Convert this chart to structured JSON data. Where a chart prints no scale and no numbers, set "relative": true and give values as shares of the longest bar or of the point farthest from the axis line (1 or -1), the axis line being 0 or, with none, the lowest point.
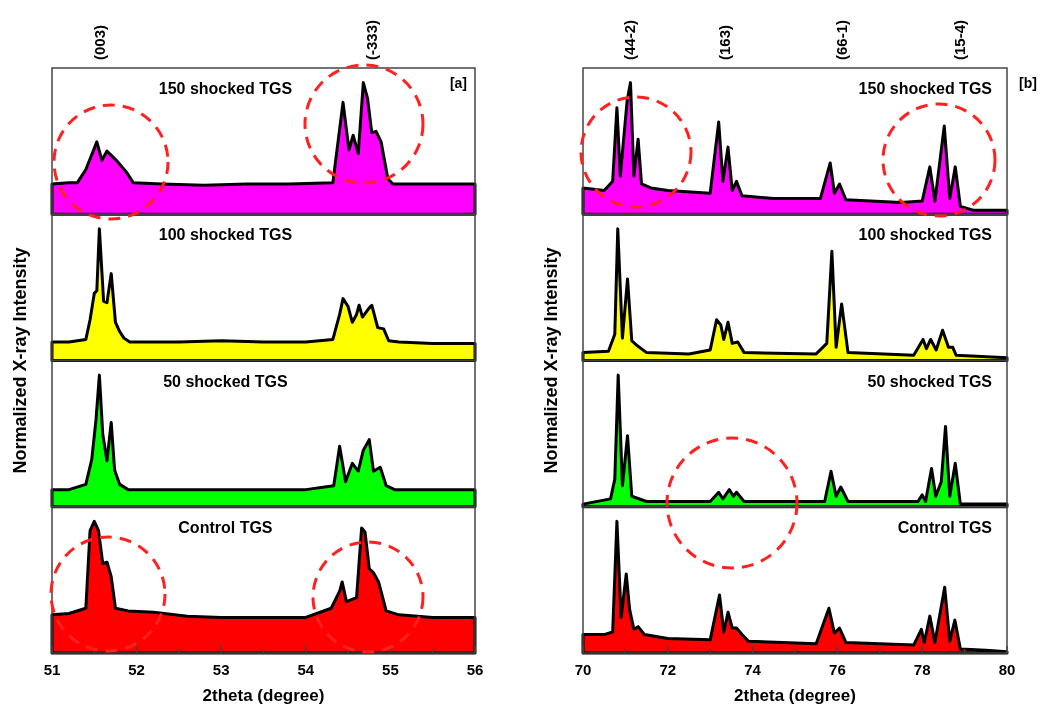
{
  "chart_data": [
    {
      "type": "area",
      "title": "150 shocked TGS",
      "ylabel": "Normalized X-ray Intensity",
      "annotations": [
        "[a]",
        "(003)",
        "(-333)"
      ],
      "color": "#ff00ff",
      "relative": true,
      "xlim": [
        51,
        56
      ],
      "tick_labels": false,
      "x": [
        51,
        51.2,
        51.3,
        51.4,
        51.53,
        51.59,
        51.65,
        51.76,
        51.88,
        51.96,
        52.3,
        52.8,
        53.3,
        53.8,
        54.32,
        54.44,
        54.51,
        54.56,
        54.62,
        54.68,
        54.73,
        54.78,
        54.83,
        54.89,
        54.97,
        55.03,
        55.5,
        56
      ],
      "values": [
        0.23,
        0.24,
        0.24,
        0.34,
        0.55,
        0.41,
        0.48,
        0.41,
        0.32,
        0.24,
        0.23,
        0.22,
        0.23,
        0.23,
        0.24,
        0.85,
        0.49,
        0.6,
        0.46,
        1,
        0.88,
        0.62,
        0.63,
        0.55,
        0.27,
        0.23,
        0.23,
        0.23
      ]
    },
    {
      "type": "area",
      "title": "100 shocked TGS",
      "color": "#ffff00",
      "relative": true,
      "xlim": [
        51,
        56
      ],
      "tick_labels": false,
      "x": [
        51,
        51.2,
        51.4,
        51.45,
        51.5,
        51.53,
        51.56,
        51.61,
        51.65,
        51.7,
        51.75,
        51.8,
        51.85,
        51.92,
        52.5,
        53,
        53.5,
        54,
        54.32,
        54.4,
        54.44,
        54.5,
        54.55,
        54.6,
        54.63,
        54.67,
        54.75,
        54.78,
        54.85,
        54.92,
        54.98,
        55.1,
        55.5,
        56
      ],
      "values": [
        0.14,
        0.14,
        0.16,
        0.31,
        0.51,
        0.53,
        1,
        0.45,
        0.44,
        0.66,
        0.29,
        0.22,
        0.17,
        0.14,
        0.14,
        0.15,
        0.14,
        0.14,
        0.16,
        0.35,
        0.47,
        0.41,
        0.29,
        0.35,
        0.42,
        0.33,
        0.4,
        0.42,
        0.25,
        0.24,
        0.15,
        0.14,
        0.13,
        0.13
      ]
    },
    {
      "type": "area",
      "title": "50 shocked TGS",
      "color": "#00ff00",
      "relative": true,
      "xlim": [
        51,
        56
      ],
      "tick_labels": false,
      "x": [
        51,
        51.2,
        51.4,
        51.47,
        51.52,
        51.56,
        51.6,
        51.65,
        51.7,
        51.74,
        51.8,
        51.9,
        52.5,
        53,
        53.5,
        54,
        54.33,
        54.4,
        54.47,
        54.55,
        54.62,
        54.68,
        54.75,
        54.8,
        54.88,
        54.95,
        55.05,
        55.5,
        56
      ],
      "values": [
        0.13,
        0.13,
        0.17,
        0.36,
        0.66,
        1,
        0.55,
        0.35,
        0.64,
        0.28,
        0.17,
        0.13,
        0.13,
        0.13,
        0.13,
        0.13,
        0.16,
        0.46,
        0.19,
        0.33,
        0.27,
        0.43,
        0.51,
        0.27,
        0.3,
        0.16,
        0.13,
        0.13,
        0.13
      ]
    },
    {
      "type": "area",
      "title": "Control TGS",
      "xlabel": "2theta (degree)",
      "color": "#ff0000",
      "relative": true,
      "xlim": [
        51,
        56
      ],
      "tick_labels": "x",
      "xticks": [
        51,
        {
          "value": 51.5,
          "label": null
        },
        52,
        {
          "value": 52.5,
          "label": null
        },
        53,
        {
          "value": 53.5,
          "label": null
        },
        54,
        {
          "value": 54.5,
          "label": null
        },
        55,
        {
          "value": 55.5,
          "label": null
        },
        56
      ],
      "x": [
        51,
        51.2,
        51.4,
        51.45,
        51.5,
        51.55,
        51.6,
        51.65,
        51.7,
        51.75,
        51.9,
        52.2,
        52.6,
        53,
        53.5,
        54,
        54.3,
        54.4,
        54.43,
        54.48,
        54.6,
        54.66,
        54.7,
        54.75,
        54.8,
        54.86,
        54.95,
        55.1,
        55.5,
        56
      ],
      "values": [
        0.29,
        0.3,
        0.34,
        0.93,
        1,
        0.93,
        0.68,
        0.69,
        0.58,
        0.34,
        0.32,
        0.31,
        0.28,
        0.27,
        0.27,
        0.27,
        0.34,
        0.47,
        0.54,
        0.39,
        0.42,
        0.95,
        0.92,
        0.64,
        0.61,
        0.54,
        0.32,
        0.29,
        0.27,
        0.27
      ]
    },
    {
      "type": "area",
      "title": "150 shocked TGS",
      "ylabel": "Normalized X-ray Intensity",
      "annotations": [
        "[b]",
        "(44-2)",
        "(163)",
        "(66-1)",
        "(15-4)"
      ],
      "color": "#ff00ff",
      "relative": true,
      "xlim": [
        70,
        80
      ],
      "tick_labels": false,
      "x": [
        70,
        70.5,
        70.7,
        70.8,
        70.88,
        71.04,
        71.12,
        71.2,
        71.3,
        71.38,
        71.6,
        72,
        73,
        73.2,
        73.3,
        73.42,
        73.52,
        73.62,
        73.75,
        74.5,
        75.6,
        75.83,
        75.93,
        76.05,
        76.2,
        77.5,
        78,
        78.18,
        78.3,
        78.52,
        78.65,
        78.78,
        78.9,
        79.2,
        80
      ],
      "values": [
        0.2,
        0.18,
        0.25,
        0.81,
        0.29,
        0.86,
        1,
        0.29,
        0.57,
        0.23,
        0.2,
        0.18,
        0.16,
        0.7,
        0.25,
        0.51,
        0.18,
        0.25,
        0.14,
        0.12,
        0.12,
        0.39,
        0.16,
        0.23,
        0.11,
        0.09,
        0.1,
        0.36,
        0.1,
        0.67,
        0.12,
        0.36,
        0.06,
        0.03,
        0.03
      ]
    },
    {
      "type": "area",
      "title": "100 shocked TGS",
      "color": "#ffff00",
      "relative": true,
      "xlim": [
        70,
        80
      ],
      "tick_labels": false,
      "x": [
        70,
        70.6,
        70.75,
        70.82,
        70.93,
        71.05,
        71.15,
        71.25,
        71.5,
        72.5,
        73,
        73.15,
        73.25,
        73.32,
        73.42,
        73.52,
        73.65,
        73.8,
        75.5,
        75.75,
        75.87,
        75.97,
        76.1,
        76.25,
        77.8,
        78.02,
        78.1,
        78.2,
        78.33,
        78.48,
        78.62,
        78.72,
        78.8,
        80
      ],
      "values": [
        0.06,
        0.07,
        0.2,
        1,
        0.17,
        0.62,
        0.15,
        0.12,
        0.06,
        0.05,
        0.08,
        0.31,
        0.27,
        0.16,
        0.29,
        0.13,
        0.14,
        0.06,
        0.05,
        0.13,
        0.83,
        0.1,
        0.43,
        0.06,
        0.04,
        0.16,
        0.09,
        0.16,
        0.08,
        0.23,
        0.1,
        0.1,
        0.04,
        0.02
      ]
    },
    {
      "type": "area",
      "title": "50 shocked TGS",
      "color": "#00ff00",
      "relative": true,
      "xlim": [
        70,
        80
      ],
      "tick_labels": false,
      "x": [
        70,
        70.65,
        70.75,
        70.83,
        70.93,
        71.05,
        71.15,
        71.5,
        73,
        73.2,
        73.3,
        73.45,
        73.55,
        73.62,
        73.8,
        75.7,
        75.85,
        75.97,
        76.08,
        76.25,
        77.9,
        78,
        78.08,
        78.22,
        78.32,
        78.45,
        78.55,
        78.65,
        78.78,
        78.9,
        80
      ],
      "values": [
        0.02,
        0.06,
        0.21,
        1,
        0.16,
        0.54,
        0.08,
        0.04,
        0.04,
        0.11,
        0.06,
        0.13,
        0.08,
        0.11,
        0.04,
        0.04,
        0.27,
        0.08,
        0.15,
        0.04,
        0.04,
        0.09,
        0.04,
        0.29,
        0.08,
        0.19,
        0.61,
        0.08,
        0.33,
        0.02,
        0.02
      ]
    },
    {
      "type": "area",
      "title": "Control TGS",
      "xlabel": "2theta (degree)",
      "color": "#ff0000",
      "relative": true,
      "xlim": [
        70,
        80
      ],
      "tick_labels": "x",
      "xticks": [
        70,
        {
          "value": 71,
          "label": null
        },
        72,
        {
          "value": 73,
          "label": null
        },
        74,
        {
          "value": 75,
          "label": null
        },
        76,
        {
          "value": 77,
          "label": null
        },
        78,
        {
          "value": 79,
          "label": null
        },
        80
      ],
      "x": [
        70,
        70.5,
        70.7,
        70.8,
        70.9,
        71.02,
        71.1,
        71.2,
        71.3,
        71.45,
        72,
        73,
        73.22,
        73.32,
        73.42,
        73.52,
        73.62,
        73.75,
        73.9,
        75.5,
        75.8,
        75.93,
        76.05,
        76.2,
        77.8,
        77.98,
        78.05,
        78.18,
        78.3,
        78.53,
        78.65,
        78.77,
        78.9,
        79.5,
        80
      ],
      "values": [
        0.14,
        0.14,
        0.16,
        1,
        0.27,
        0.6,
        0.33,
        0.18,
        0.2,
        0.14,
        0.11,
        0.1,
        0.44,
        0.16,
        0.31,
        0.19,
        0.19,
        0.14,
        0.09,
        0.07,
        0.34,
        0.15,
        0.19,
        0.08,
        0.06,
        0.18,
        0.08,
        0.28,
        0.08,
        0.5,
        0.09,
        0.25,
        0.03,
        0.02,
        0.01
      ]
    }
  ]
}
